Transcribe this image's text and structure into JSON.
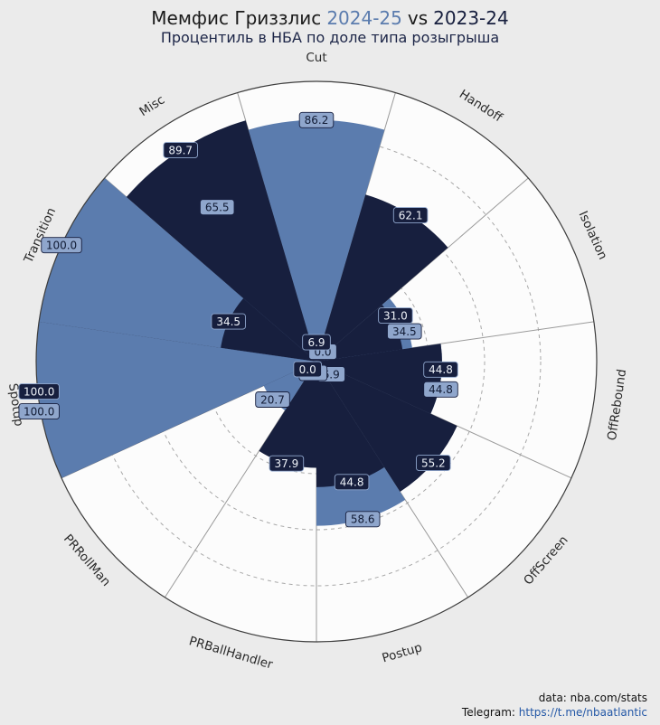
{
  "title": {
    "team": "Мемфис Гриззлис",
    "season_current": "2024-25",
    "vs": "vs",
    "season_previous": "2023-24"
  },
  "subtitle": "Процентиль в НБА по доле типа розыгрыша",
  "footer": {
    "source": "data: nba.com/stats",
    "telegram_label": "Telegram:",
    "telegram_url": "https://t.me/nbaatlantic"
  },
  "colors": {
    "background": "#ebebeb",
    "plot_fill": "#fcfcfc",
    "grid": "#a8a8a8",
    "spoke": "#9a9a9a",
    "outline": "#3d3d3d",
    "title_text": "#1a1a1a",
    "season_current": "#5b7cae",
    "season_previous": "#171f3e",
    "subtitle_text": "#1c2547",
    "category_label": "#2a2a2a",
    "link": "#2458a6",
    "source_text": "#111111"
  },
  "chart_data": {
    "type": "polar-bar",
    "title": "Мемфис Гриззлис 2024-25 vs 2023-24",
    "subtitle": "Процентиль в НБА по доле типа розыгрыша",
    "units": "percentile",
    "rlim": [
      0,
      100
    ],
    "grid_rings": [
      20,
      40,
      60,
      80
    ],
    "start": "top",
    "direction": "clockwise",
    "grid": "dashed-circles",
    "legend_position": "in-title",
    "categories": [
      "Cut",
      "Handoff",
      "Isolation",
      "OffRebound",
      "OffScreen",
      "Postup",
      "PRBallHandler",
      "PRRollMan",
      "Spotup",
      "Transition",
      "Misc"
    ],
    "series": [
      {
        "name": "2024-25",
        "color": "#5b7cae",
        "label_bg": "#8fa6cc",
        "label_text": "#101a33",
        "label_border": "#171f3e",
        "values": [
          86.2,
          0.0,
          34.5,
          44.8,
          6.9,
          58.6,
          0.0,
          20.7,
          100.0,
          100.0,
          65.5
        ]
      },
      {
        "name": "2023-24",
        "color": "#171f3e",
        "label_bg": "#171f3e",
        "label_text": "#eef2f8",
        "label_border": "#8fa6cc",
        "values": [
          6.9,
          62.1,
          31.0,
          44.8,
          55.2,
          44.8,
          37.9,
          0.0,
          100.0,
          34.5,
          89.7
        ]
      }
    ],
    "draw_light_on_top": [
      "Spotup"
    ]
  }
}
